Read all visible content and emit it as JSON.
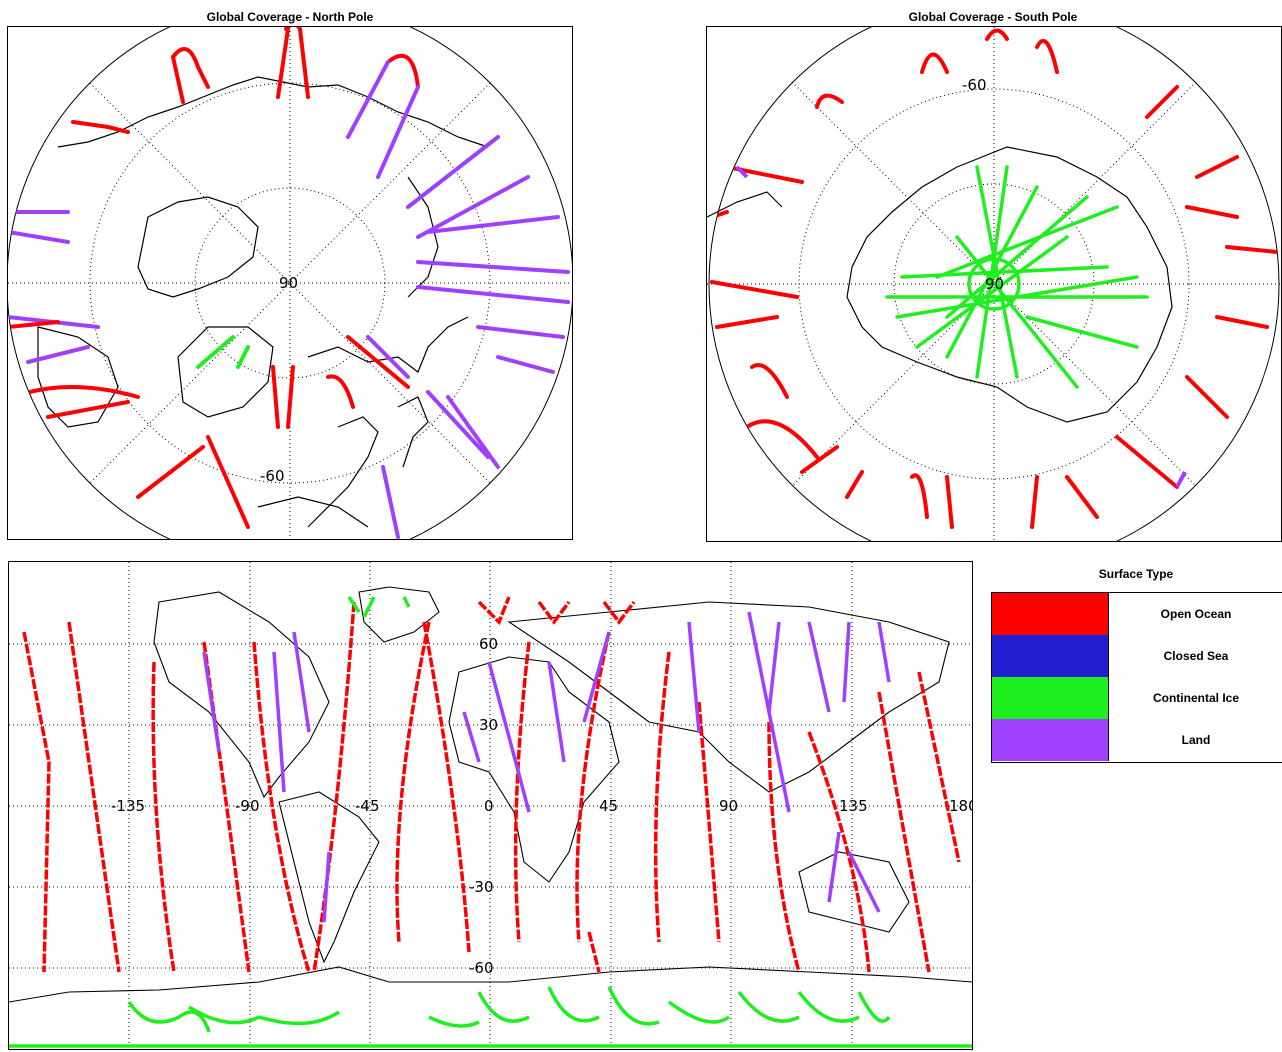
{
  "north_panel": {
    "title": "Global Coverage - North Pole",
    "label_center": "90",
    "label_ring": "-60"
  },
  "south_panel": {
    "title": "Global Coverage - South Pole",
    "label_center": "90",
    "label_ring": "-60"
  },
  "world_panel": {
    "lon_labels": [
      "-135",
      "-90",
      "-45",
      "0",
      "45",
      "90",
      "135",
      "180"
    ],
    "lat_labels": [
      "60",
      "30",
      "-30",
      "-60"
    ]
  },
  "legend": {
    "title": "Surface Type",
    "items": [
      {
        "label": "Open Ocean",
        "color": "#ff0000"
      },
      {
        "label": "Closed Sea",
        "color": "#1f1fcf"
      },
      {
        "label": "Continental Ice",
        "color": "#1fef1f"
      },
      {
        "label": "Land",
        "color": "#9f3fff"
      }
    ]
  },
  "colors": {
    "ocean": "#ff0000",
    "ice": "#1fef1f",
    "land": "#9f3fff",
    "closed_sea": "#1f1fcf"
  }
}
